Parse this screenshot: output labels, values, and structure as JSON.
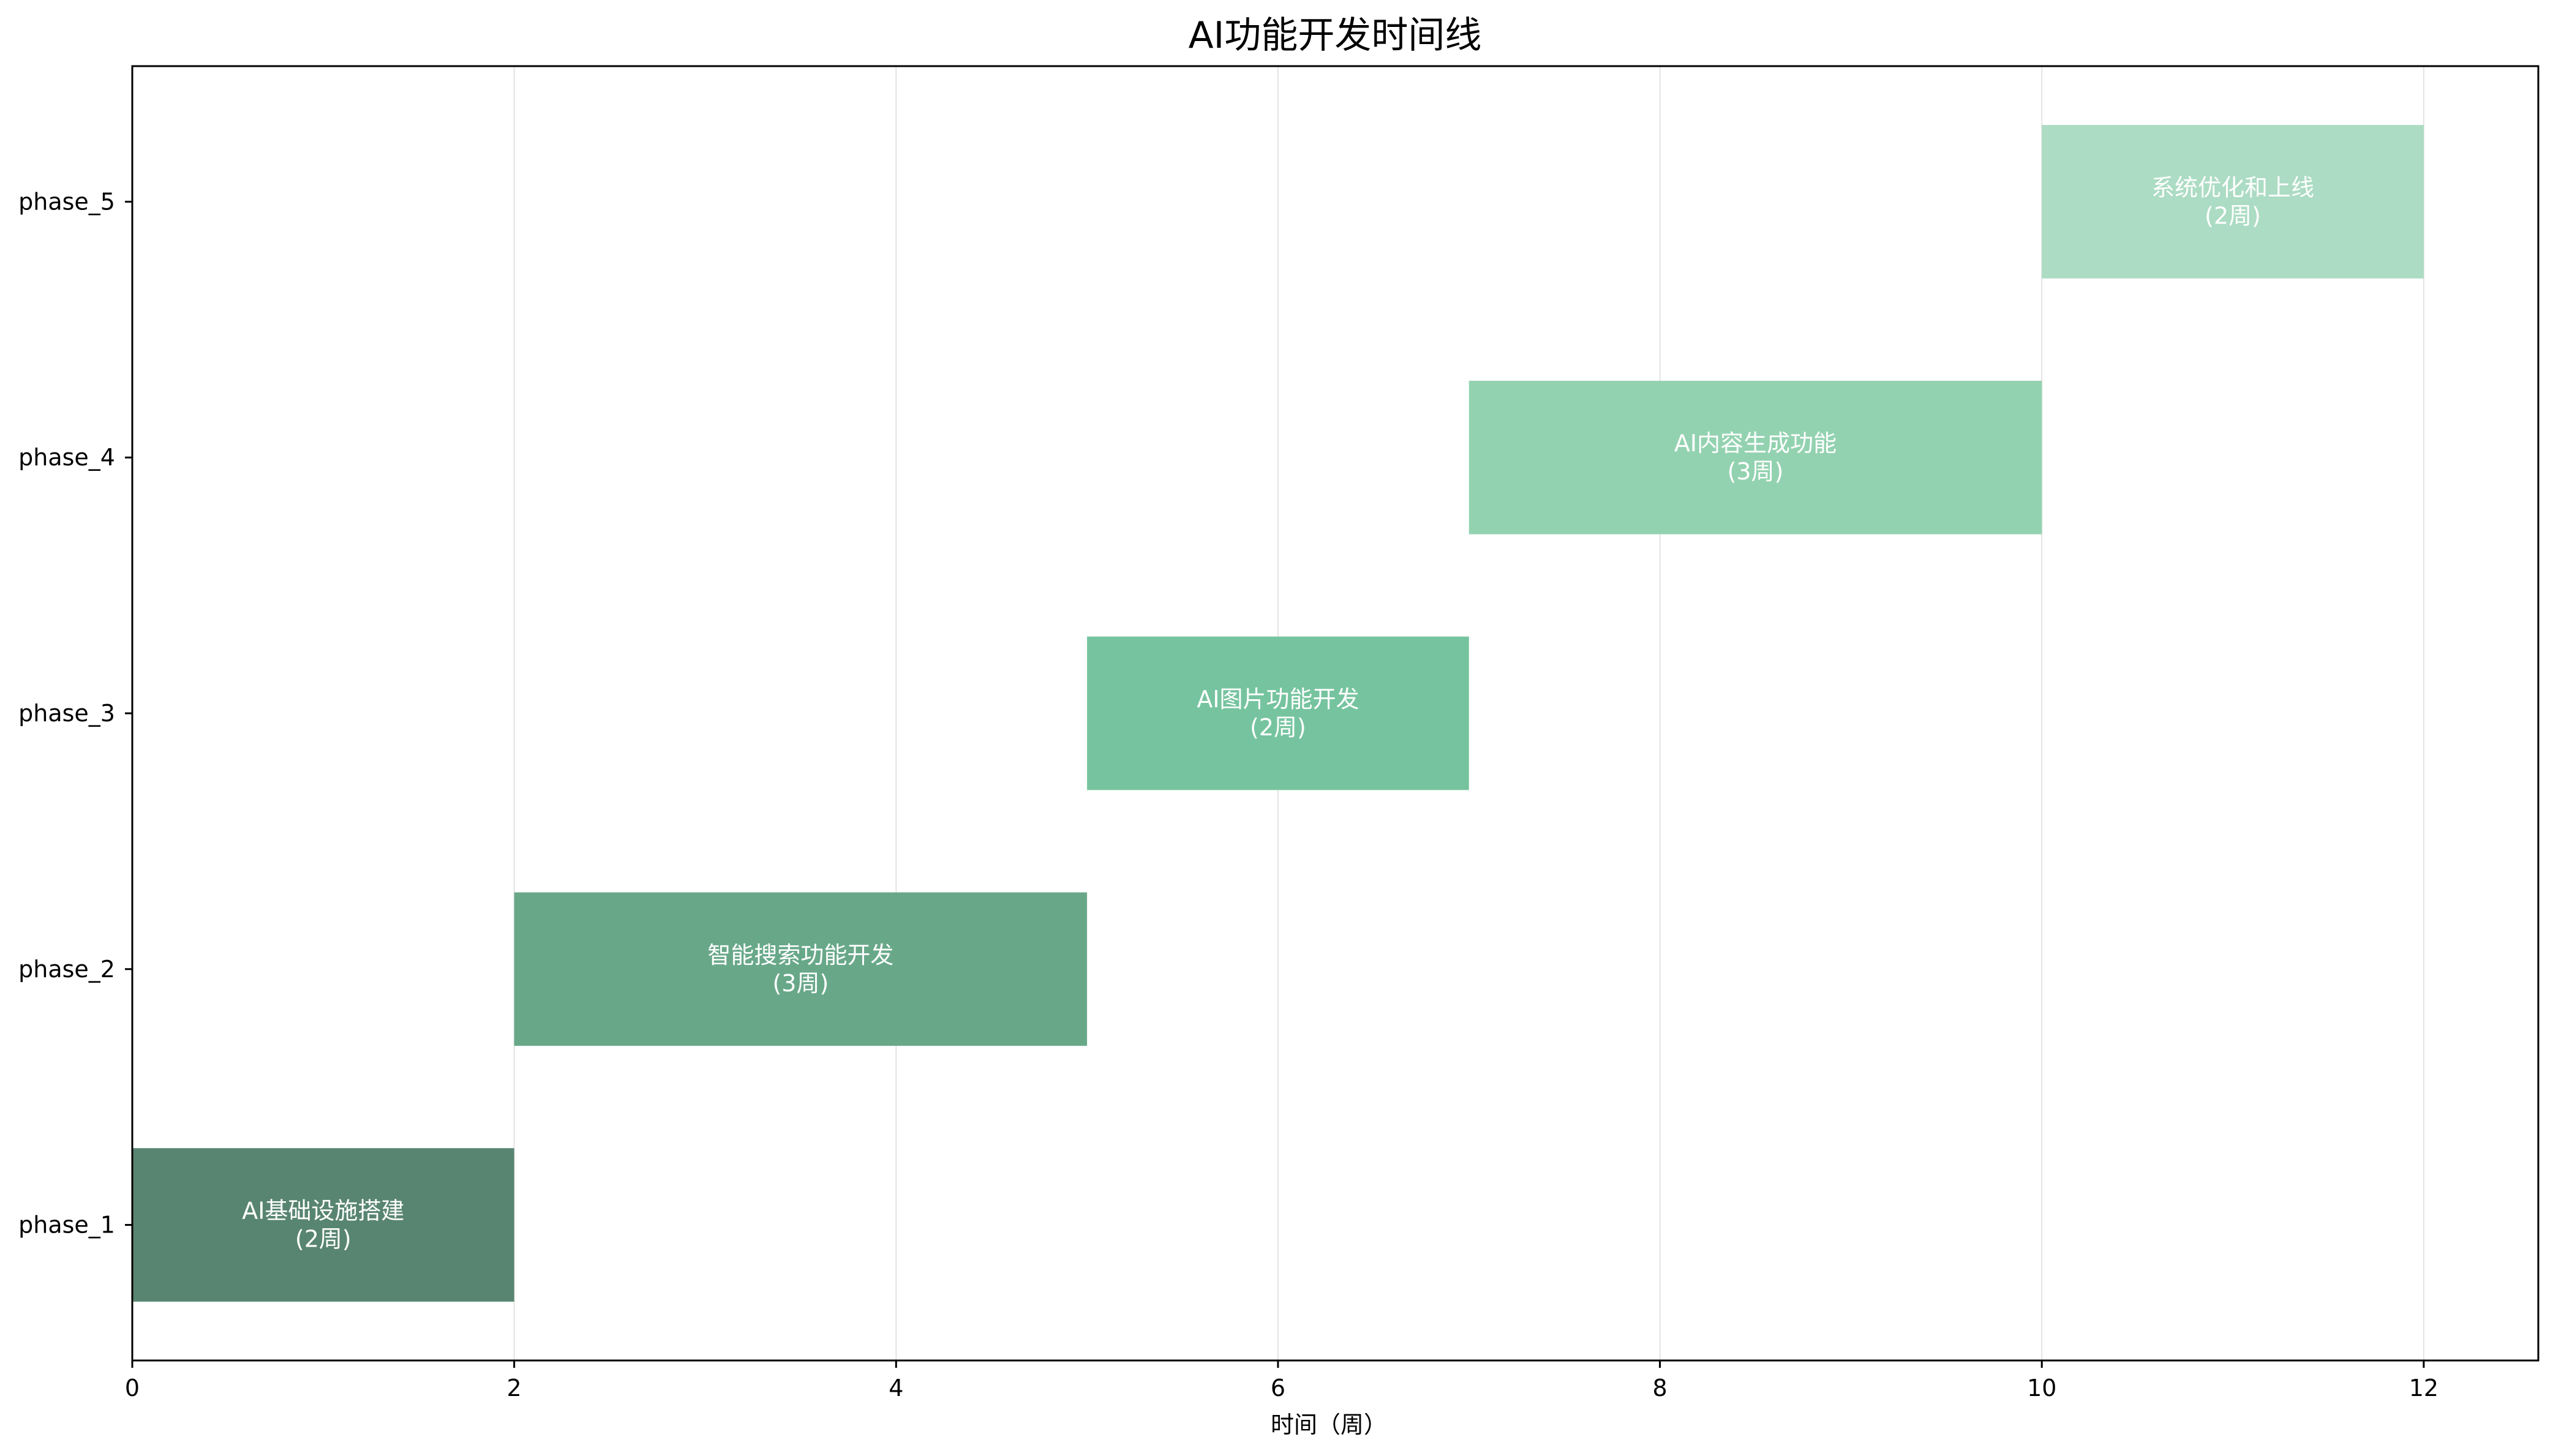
{
  "chart_data": {
    "type": "gantt",
    "title": "AI功能开发时间线",
    "xlabel": "时间（周）",
    "ylabel": "",
    "xlim": [
      0,
      12.6
    ],
    "ylim": [
      0.47,
      5.53
    ],
    "grid": "x-only",
    "x_ticks": [
      0,
      2,
      4,
      6,
      8,
      10,
      12
    ],
    "categories": [
      "phase_1",
      "phase_2",
      "phase_3",
      "phase_4",
      "phase_5"
    ],
    "tasks": [
      {
        "phase": "phase_1",
        "name": "AI基础设施搭建",
        "duration_label": "(2周)",
        "start": 0,
        "end": 2,
        "duration": 2,
        "color": "#588571"
      },
      {
        "phase": "phase_2",
        "name": "智能搜索功能开发",
        "duration_label": "(3周)",
        "start": 2,
        "end": 5,
        "duration": 3,
        "color": "#68a889"
      },
      {
        "phase": "phase_3",
        "name": "AI图片功能开发",
        "duration_label": "(2周)",
        "start": 5,
        "end": 7,
        "duration": 2,
        "color": "#76c49f"
      },
      {
        "phase": "phase_4",
        "name": "AI内容生成功能",
        "duration_label": "(3周)",
        "start": 7,
        "end": 10,
        "duration": 3,
        "color": "#93d2b0"
      },
      {
        "phase": "phase_5",
        "name": "系统优化和上线",
        "duration_label": "(2周)",
        "start": 10,
        "end": 12,
        "duration": 2,
        "color": "#acdcc3"
      }
    ],
    "colors": {
      "axis": "#000000",
      "grid": "#e3e3e3",
      "label_text": "#ffffff"
    }
  }
}
